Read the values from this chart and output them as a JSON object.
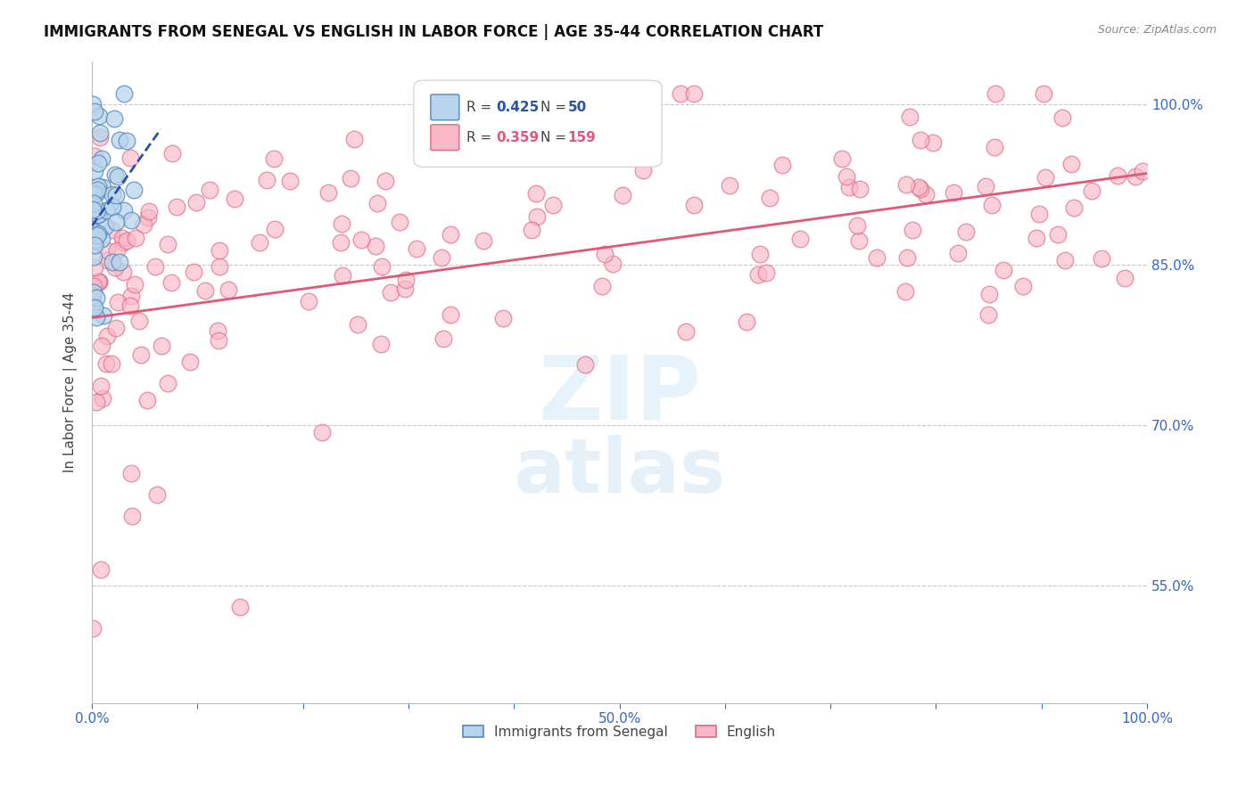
{
  "title": "IMMIGRANTS FROM SENEGAL VS ENGLISH IN LABOR FORCE | AGE 35-44 CORRELATION CHART",
  "source": "Source: ZipAtlas.com",
  "ylabel": "In Labor Force | Age 35-44",
  "xlim": [
    0.0,
    1.0
  ],
  "ylim": [
    0.44,
    1.04
  ],
  "yticks": [
    0.55,
    0.7,
    0.85,
    1.0
  ],
  "ytick_labels": [
    "55.0%",
    "70.0%",
    "85.0%",
    "100.0%"
  ],
  "xticks": [
    0.0,
    0.1,
    0.2,
    0.3,
    0.4,
    0.5,
    0.6,
    0.7,
    0.8,
    0.9,
    1.0
  ],
  "xtick_labels": [
    "0.0%",
    "",
    "",
    "",
    "",
    "50.0%",
    "",
    "",
    "",
    "",
    "100.0%"
  ],
  "blue_color": "#b8d4ec",
  "blue_edge_color": "#5588bb",
  "blue_line_color": "#2255aa",
  "pink_color": "#f8b8c8",
  "pink_edge_color": "#e06880",
  "pink_line_color": "#e05878",
  "legend_label_blue": "Immigrants from Senegal",
  "legend_label_pink": "English",
  "title_color": "#111111",
  "axis_label_color": "#444444",
  "tick_color": "#3366cc",
  "grid_color": "#c8c8c8",
  "blue_R": 0.425,
  "pink_R": 0.359,
  "blue_N": 50,
  "pink_N": 159,
  "blue_marker_size": 180,
  "pink_marker_size": 180,
  "blue_alpha": 0.75,
  "pink_alpha": 0.65
}
